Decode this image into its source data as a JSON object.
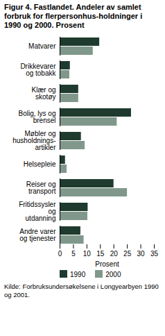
{
  "chart_data": {
    "type": "bar",
    "orientation": "horizontal",
    "title": "Figur 4. Fastlandet. Andeler av samlet forbruk for flerpersonhus-holdninger i 1990 og 2000. Prosent",
    "categories": [
      "Matvarer",
      "Drikkevarer og tobakk",
      "Klær og skotøy",
      "Bolig, lys og brensel",
      "Møbler og husholdnings-artikler",
      "Helsepleie",
      "Reiser og transport",
      "Fritidssysler og utdanning",
      "Andre varer og tjenester"
    ],
    "series": [
      {
        "name": "1990",
        "color": "#1f3b2f",
        "values": [
          14.7,
          3.8,
          6.9,
          26.5,
          7.9,
          2.0,
          20.0,
          10.4,
          7.7
        ]
      },
      {
        "name": "2000",
        "color": "#80988b",
        "values": [
          12.3,
          3.6,
          6.9,
          21.2,
          9.3,
          2.6,
          25.0,
          10.3,
          8.9
        ]
      }
    ],
    "x_label": "Prosent",
    "xlim": [
      0,
      35
    ],
    "xticks": [
      0,
      5,
      10,
      15,
      20,
      25,
      30,
      35
    ],
    "grid": false,
    "legend": "bottom",
    "caption": "Kilde: Forbruksundersøkelsene i Longyearbyen 1990 og 2001."
  }
}
